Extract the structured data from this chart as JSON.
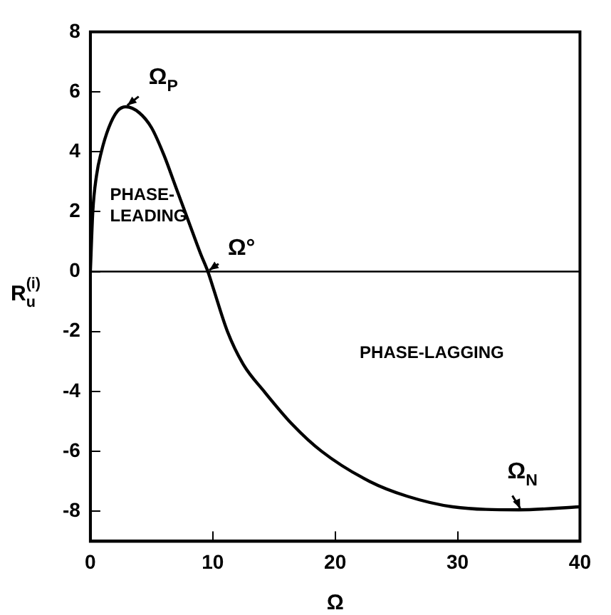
{
  "chart_data": {
    "type": "line",
    "xlabel": "Ω",
    "ylabel": "R$_{u}$$^{(i)}$",
    "x": [
      0,
      0.2,
      0.5,
      0.9,
      1.5,
      2.2,
      2.9,
      4,
      5,
      6,
      7,
      8,
      9,
      9.6,
      10,
      11.2,
      12.5,
      14.2,
      16.5,
      18.9,
      22.8,
      25.9,
      29.6,
      35,
      40
    ],
    "series": [
      {
        "color": "#000000",
        "values": [
          0,
          2,
          3.2,
          4,
          4.8,
          5.35,
          5.5,
          5.3,
          4.8,
          3.9,
          2.8,
          1.7,
          0.6,
          0,
          -0.5,
          -2,
          -3.1,
          -4,
          -5.1,
          -6,
          -7,
          -7.5,
          -7.85,
          -7.95,
          -7.85
        ]
      }
    ],
    "xlim": [
      0,
      40
    ],
    "xticks": [
      0,
      10,
      20,
      30,
      40
    ],
    "ylim": [
      -9,
      8
    ],
    "yticks": [
      -8,
      -6,
      -4,
      -2,
      0,
      2,
      4,
      6,
      8
    ],
    "ref_lines": [
      {
        "axis": "y",
        "value": 0,
        "color": "#000000"
      }
    ],
    "annotations": [
      {
        "text": "Ω$_{P}$",
        "x": 2.9,
        "y": 5.5
      },
      {
        "text": "Ω°",
        "x": 9.6,
        "y": 0
      },
      {
        "text": "Ω$_{N}$",
        "x": 35,
        "y": -7.95
      },
      "PHASE-\nLEADING",
      "PHASE-LAGGING"
    ],
    "grid": false,
    "legend": false,
    "marker": "none",
    "line_style": "solid"
  }
}
